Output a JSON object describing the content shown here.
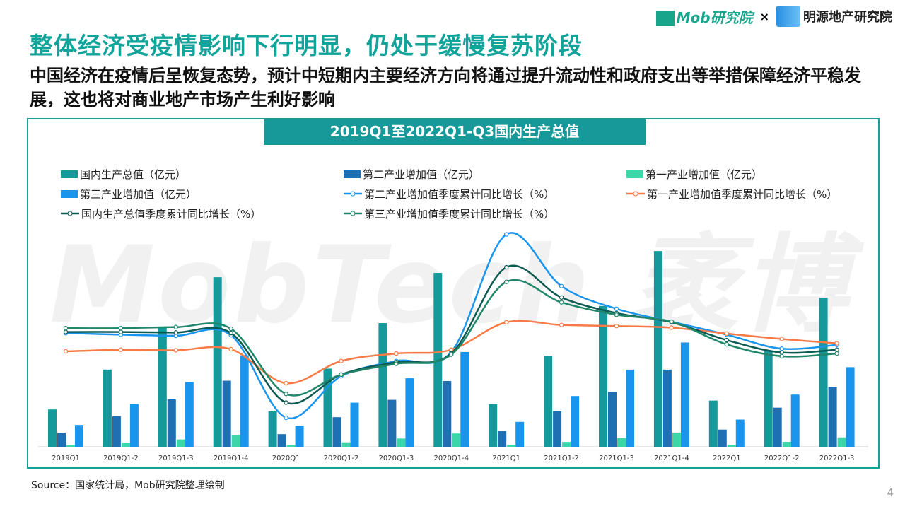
{
  "header": {
    "title": "整体经济受疫情影响下行明显，仍处于缓慢复苏阶段",
    "subtitle": "中国经济在疫情后呈恢复态势，预计中短期内主要经济方向将通过提升流动性和政府支出等举措保障经济平稳发展，这也将对商业地产市场产生利好影响",
    "logo_mob": "Mob研究院",
    "logo_x": "×",
    "logo_my": "明源地产研究院",
    "watermark": "MobTech 袤博"
  },
  "footer": {
    "source": "Source：国家统计局，Mob研究院整理绘制",
    "page": "4"
  },
  "chart_data": {
    "type": "bar+line",
    "title": "2019Q1至2022Q1-Q3国内生产总值",
    "categories": [
      "2019Q1",
      "2019Q1-2",
      "2019Q1-3",
      "2019Q1-4",
      "2020Q1",
      "2020Q1-2",
      "2020Q1-3",
      "2020Q1-4",
      "2021Q1",
      "2021Q1-2",
      "2021Q1-3",
      "2021Q1-4",
      "2022Q1",
      "2022Q1-2",
      "2022Q1-3"
    ],
    "ylim": [
      0,
      1260000
    ],
    "y2lim": [
      -15,
      25
    ],
    "grid": false,
    "legend": "top",
    "bars": [
      {
        "name": "国内生产总值（亿元）",
        "color": "#15999a",
        "values": [
          218063,
          450933,
          697798,
          990865,
          206504,
          456614,
          722786,
          1015986,
          249310,
          532167,
          823131,
          1143670,
          270178,
          562642,
          870269
        ]
      },
      {
        "name": "第二产业增加值（亿元）",
        "color": "#1f6fb3",
        "values": [
          81806,
          178122,
          276912,
          386165,
          73638,
          172759,
          274267,
          384255,
          92623,
          207154,
          320940,
          450904,
          100372,
          228636,
          350189
        ]
      },
      {
        "name": "第一产业增加值（亿元）",
        "color": "#3dd6a8",
        "values": [
          8769,
          23207,
          43005,
          70467,
          10186,
          26053,
          48123,
          77754,
          11332,
          28402,
          51430,
          83086,
          10954,
          29137,
          54779
        ]
      },
      {
        "name": "第三产业增加值（亿元）",
        "color": "#1a95ee",
        "values": [
          127488,
          249604,
          377881,
          534233,
          122680,
          257802,
          400396,
          553977,
          145355,
          296611,
          450761,
          609680,
          158852,
          304869,
          465301
        ]
      }
    ],
    "lines": [
      {
        "name": "第二产业增加值季度累计同比增长（%）",
        "color": "#1a95ee",
        "values": [
          6.1,
          5.8,
          5.6,
          5.7,
          -9.6,
          -1.9,
          0.9,
          2.6,
          24.4,
          14.8,
          10.6,
          8.2,
          5.8,
          3.2,
          3.9
        ]
      },
      {
        "name": "第一产业增加值季度累计同比增长（%）",
        "color": "#f77b47",
        "values": [
          2.7,
          3.0,
          2.9,
          3.1,
          -3.2,
          0.9,
          2.3,
          3.0,
          8.1,
          7.6,
          7.4,
          7.1,
          6.0,
          5.0,
          4.2
        ]
      },
      {
        "name": "国内生产总值季度累计同比增长（%）",
        "color": "#0d5a52",
        "values": [
          6.3,
          6.3,
          6.2,
          6.1,
          -6.8,
          -1.6,
          0.7,
          2.3,
          18.3,
          12.7,
          9.8,
          8.1,
          4.8,
          2.5,
          3.0
        ]
      },
      {
        "name": "第三产业增加值季度累计同比增长（%）",
        "color": "#21876a",
        "values": [
          7.0,
          7.0,
          7.2,
          6.9,
          -5.2,
          -1.6,
          0.4,
          2.1,
          15.6,
          11.8,
          9.5,
          8.2,
          4.0,
          1.8,
          2.3
        ]
      }
    ]
  }
}
